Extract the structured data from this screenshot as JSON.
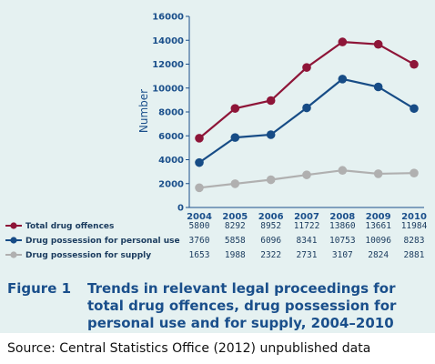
{
  "chart_data": {
    "type": "line",
    "categories": [
      "2004",
      "2005",
      "2006",
      "2007",
      "2008",
      "2009",
      "2010"
    ],
    "ylabel": "Number",
    "ylim": [
      0,
      16000
    ],
    "yticks": [
      "0",
      "2000",
      "4000",
      "6000",
      "8000",
      "10000",
      "12000",
      "14000",
      "16000"
    ],
    "grid": false,
    "series": [
      {
        "name": "Total drug offences",
        "color": "#8e1538",
        "values": [
          5800,
          8292,
          8952,
          11722,
          13860,
          13661,
          11984
        ],
        "labels": [
          "5800",
          "8292",
          "8952",
          "11722",
          "13860",
          "13661",
          "11984"
        ]
      },
      {
        "name": "Drug possession for personal use",
        "color": "#174c86",
        "values": [
          3760,
          5858,
          6096,
          8341,
          10753,
          10096,
          8283
        ],
        "labels": [
          "3760",
          "5858",
          "6096",
          "8341",
          "10753",
          "10096",
          "8283"
        ]
      },
      {
        "name": "Drug possession for supply",
        "color": "#b0b0b0",
        "values": [
          1653,
          1988,
          2322,
          2731,
          3107,
          2824,
          2881
        ],
        "labels": [
          "1653",
          "1988",
          "2322",
          "2731",
          "3107",
          "2824",
          "2881"
        ]
      }
    ]
  },
  "caption": {
    "label": "Figure 1",
    "text": "Trends in relevant legal proceedings for total drug offences, drug possession for personal use and for supply, 2004–2010"
  },
  "source": "Source: Central Statistics Office (2012) unpublished data"
}
